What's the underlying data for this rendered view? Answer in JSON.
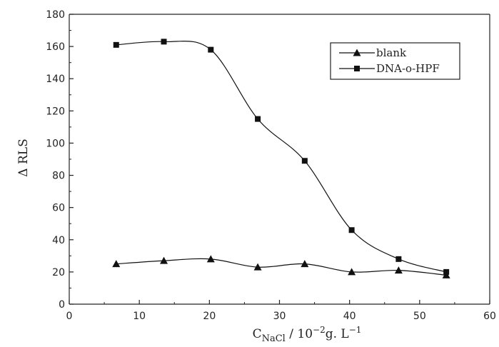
{
  "chart_data": {
    "type": "line",
    "title": "",
    "ylabel": "Δ RLS",
    "xlabel": {
      "base": "C",
      "subscript": "NaCl",
      "units_prefix": " / 10",
      "units_power": "−2",
      "units_mid": "g. L",
      "units_power2": "−1"
    },
    "xlim": [
      0,
      60
    ],
    "ylim": [
      0,
      180
    ],
    "x_ticks": [
      0,
      10,
      20,
      30,
      40,
      50,
      60
    ],
    "y_ticks": [
      0,
      20,
      40,
      60,
      80,
      100,
      120,
      140,
      160,
      180
    ],
    "grid": false,
    "legend_position": "top-right",
    "x": [
      6.7,
      13.5,
      20.2,
      26.9,
      33.6,
      40.3,
      47,
      53.8
    ],
    "series": [
      {
        "name": "blank",
        "marker": "triangle",
        "values": [
          25,
          27,
          28,
          23,
          25,
          20,
          21,
          18
        ]
      },
      {
        "name": "DNA-o-HPF",
        "marker": "square",
        "values": [
          161,
          163,
          158,
          115,
          89,
          46,
          28,
          20
        ]
      }
    ]
  }
}
